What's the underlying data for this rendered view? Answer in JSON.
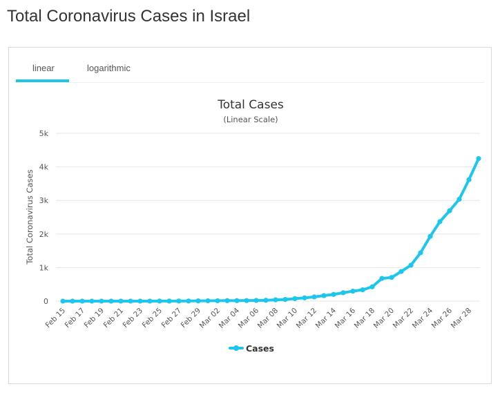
{
  "page": {
    "title": "Total Coronavirus Cases in Israel"
  },
  "tabs": [
    {
      "label": "linear",
      "active": true
    },
    {
      "label": "logarithmic",
      "active": false
    }
  ],
  "colors": {
    "accent": "#20c4e6",
    "series": "#1cc6ec",
    "grid": "#e6e6e6",
    "text": "#333333"
  },
  "chart_data": {
    "type": "line",
    "title": "Total Cases",
    "subtitle": "(Linear Scale)",
    "xlabel": "",
    "ylabel": "Total Coronavirus Cases",
    "ylim": [
      0,
      5000
    ],
    "yticks": [
      0,
      1000,
      2000,
      3000,
      4000,
      5000
    ],
    "ytick_labels": [
      "0",
      "1k",
      "2k",
      "3k",
      "4k",
      "5k"
    ],
    "xtick_labels": [
      "Feb 15",
      "Feb 17",
      "Feb 19",
      "Feb 21",
      "Feb 23",
      "Feb 25",
      "Feb 27",
      "Feb 29",
      "Mar 02",
      "Mar 04",
      "Mar 06",
      "Mar 08",
      "Mar 10",
      "Mar 12",
      "Mar 14",
      "Mar 16",
      "Mar 18",
      "Mar 20",
      "Mar 22",
      "Mar 24",
      "Mar 26",
      "Mar 28"
    ],
    "grid": true,
    "legend": "bottom-center",
    "x": [
      "Feb 15",
      "Feb 16",
      "Feb 17",
      "Feb 18",
      "Feb 19",
      "Feb 20",
      "Feb 21",
      "Feb 22",
      "Feb 23",
      "Feb 24",
      "Feb 25",
      "Feb 26",
      "Feb 27",
      "Feb 28",
      "Feb 29",
      "Mar 01",
      "Mar 02",
      "Mar 03",
      "Mar 04",
      "Mar 05",
      "Mar 06",
      "Mar 07",
      "Mar 08",
      "Mar 09",
      "Mar 10",
      "Mar 11",
      "Mar 12",
      "Mar 13",
      "Mar 14",
      "Mar 15",
      "Mar 16",
      "Mar 17",
      "Mar 18",
      "Mar 19",
      "Mar 20",
      "Mar 21",
      "Mar 22",
      "Mar 23",
      "Mar 24",
      "Mar 25",
      "Mar 26",
      "Mar 27",
      "Mar 28",
      "Mar 29"
    ],
    "series": [
      {
        "name": "Cases",
        "values": [
          0,
          0,
          0,
          0,
          0,
          0,
          1,
          1,
          1,
          1,
          2,
          2,
          3,
          4,
          7,
          10,
          12,
          15,
          15,
          17,
          21,
          25,
          39,
          50,
          75,
          97,
          126,
          164,
          200,
          250,
          298,
          337,
          427,
          677,
          705,
          883,
          1071,
          1442,
          1930,
          2369,
          2693,
          3035,
          3619,
          4247
        ]
      }
    ]
  }
}
